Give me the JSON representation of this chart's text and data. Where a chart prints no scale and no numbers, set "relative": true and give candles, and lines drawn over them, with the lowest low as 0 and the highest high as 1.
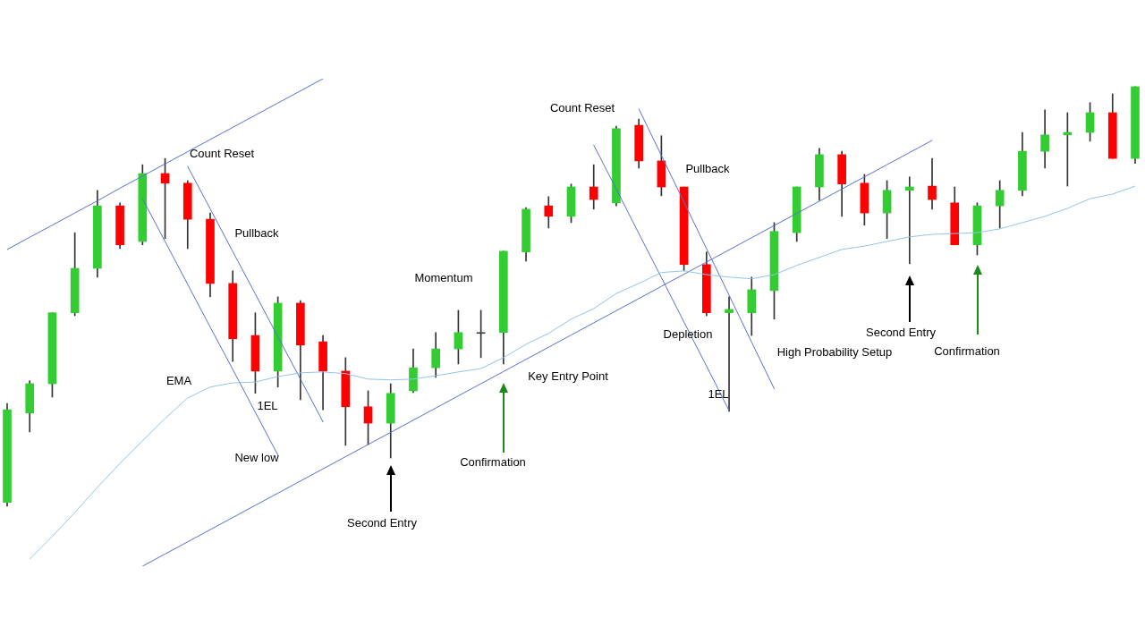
{
  "chart_data": {
    "type": "candlestick",
    "relative": true,
    "categories": [
      null,
      null,
      null,
      null,
      null,
      null,
      null,
      null,
      null,
      null,
      null,
      null,
      null,
      null,
      null,
      null,
      null,
      null,
      null,
      null,
      null,
      null,
      null,
      null,
      null,
      null,
      null,
      null,
      null,
      null,
      null,
      null,
      null,
      null,
      null,
      null,
      null,
      null,
      null,
      null,
      null,
      null,
      null,
      null,
      null,
      null,
      null,
      null,
      null,
      null,
      null
    ],
    "ohlc": [
      [
        0.009,
        0.245,
        0,
        0.23
      ],
      [
        0.222,
        0.299,
        0.177,
        0.292
      ],
      [
        0.292,
        0.461,
        0.26,
        0.461
      ],
      [
        0.461,
        0.652,
        0.454,
        0.567
      ],
      [
        0.567,
        0.753,
        0.546,
        0.716
      ],
      [
        0.716,
        0.723,
        0.614,
        0.623
      ],
      [
        0.631,
        0.814,
        0.623,
        0.793
      ],
      [
        0.793,
        0.829,
        0.638,
        0.77
      ],
      [
        0.77,
        0.776,
        0.614,
        0.684
      ],
      [
        0.684,
        0.699,
        0.499,
        0.531
      ],
      [
        0.531,
        0.561,
        0.345,
        0.399
      ],
      [
        0.407,
        0.461,
        0.269,
        0.322
      ],
      [
        0.322,
        0.499,
        0.284,
        0.484
      ],
      [
        0.484,
        0.49,
        0.254,
        0.384
      ],
      [
        0.392,
        0.407,
        0.23,
        0.322
      ],
      [
        0.322,
        0.354,
        0.145,
        0.237
      ],
      [
        0.237,
        0.275,
        0.147,
        0.198
      ],
      [
        0.198,
        0.292,
        0.115,
        0.269
      ],
      [
        0.275,
        0.375,
        0.271,
        0.33
      ],
      [
        0.33,
        0.414,
        0.307,
        0.375
      ],
      [
        0.375,
        0.467,
        0.339,
        0.414
      ],
      [
        0.414,
        0.467,
        0.354,
        0.414
      ],
      [
        0.414,
        0.608,
        0.339,
        0.608
      ],
      [
        0.606,
        0.712,
        0.584,
        0.708
      ],
      [
        0.716,
        0.738,
        0.663,
        0.691
      ],
      [
        0.691,
        0.768,
        0.676,
        0.761
      ],
      [
        0.761,
        0.814,
        0.708,
        0.731
      ],
      [
        0.723,
        0.906,
        0.716,
        0.9
      ],
      [
        0.908,
        0.923,
        0.806,
        0.823
      ],
      [
        0.823,
        0.883,
        0.74,
        0.761
      ],
      [
        0.761,
        0.761,
        0.561,
        0.576
      ],
      [
        0.576,
        0.606,
        0.454,
        0.461
      ],
      [
        0.461,
        0.499,
        0.226,
        0.469
      ],
      [
        0.461,
        0.546,
        0.407,
        0.516
      ],
      [
        0.514,
        0.676,
        0.446,
        0.655
      ],
      [
        0.652,
        0.761,
        0.631,
        0.761
      ],
      [
        0.761,
        0.853,
        0.729,
        0.838
      ],
      [
        0.838,
        0.846,
        0.691,
        0.768
      ],
      [
        0.77,
        0.791,
        0.67,
        0.699
      ],
      [
        0.699,
        0.776,
        0.638,
        0.753
      ],
      [
        0.753,
        0.785,
        0.578,
        0.761
      ],
      [
        0.763,
        0.829,
        0.708,
        0.731
      ],
      [
        0.723,
        0.761,
        0.623,
        0.623
      ],
      [
        0.623,
        0.723,
        0.599,
        0.716
      ],
      [
        0.716,
        0.776,
        0.663,
        0.753
      ],
      [
        0.753,
        0.891,
        0.74,
        0.846
      ],
      [
        0.846,
        0.945,
        0.806,
        0.885
      ],
      [
        0.885,
        0.938,
        0.763,
        0.891
      ],
      [
        0.891,
        0.962,
        0.87,
        0.938
      ],
      [
        0.938,
        0.983,
        0.829,
        0.829
      ],
      [
        0.829,
        1.0,
        0.817,
        1.0
      ]
    ],
    "colors": [
      "#33cc33",
      "#33cc33",
      "#33cc33",
      "#33cc33",
      "#33cc33",
      "#ff0000",
      "#33cc33",
      "#ff0000",
      "#ff0000",
      "#ff0000",
      "#ff0000",
      "#ff0000",
      "#33cc33",
      "#ff0000",
      "#ff0000",
      "#ff0000",
      "#ff0000",
      "#33cc33",
      "#33cc33",
      "#33cc33",
      "#33cc33",
      "#404040",
      "#33cc33",
      "#33cc33",
      "#ff0000",
      "#33cc33",
      "#ff0000",
      "#33cc33",
      "#ff0000",
      "#ff0000",
      "#ff0000",
      "#ff0000",
      "#33cc33",
      "#33cc33",
      "#33cc33",
      "#33cc33",
      "#33cc33",
      "#ff0000",
      "#ff0000",
      "#33cc33",
      "#33cc33",
      "#ff0000",
      "#ff0000",
      "#33cc33",
      "#33cc33",
      "#33cc33",
      "#33cc33",
      "#33cc33",
      "#33cc33",
      "#ff0000",
      "#33cc33"
    ],
    "series": [
      {
        "name": "EMA",
        "type": "line",
        "color": "#93c4e6",
        "values": [
          null,
          -0.126,
          -0.072,
          -0.015,
          0.045,
          0.102,
          0.156,
          0.209,
          0.258,
          0.284,
          0.294,
          0.296,
          0.309,
          0.318,
          0.32,
          0.316,
          0.303,
          0.301,
          0.303,
          0.311,
          0.32,
          0.328,
          0.354,
          0.386,
          0.412,
          0.446,
          0.471,
          0.507,
          0.531,
          0.557,
          0.561,
          0.552,
          0.546,
          0.542,
          0.552,
          0.574,
          0.593,
          0.612,
          0.62,
          0.631,
          0.642,
          0.648,
          0.65,
          0.652,
          0.661,
          0.676,
          0.691,
          0.71,
          0.733,
          0.744,
          0.763
        ]
      },
      {
        "type": "line",
        "color": "#5a6fd0",
        "values": [
          0.612,
          0.641,
          0.67,
          0.699,
          0.728,
          0.758,
          0.787,
          0.816,
          0.845,
          0.874,
          0.903,
          0.932,
          0.961,
          0.99,
          1.019,
          null,
          null,
          null,
          null,
          null,
          null,
          null,
          null,
          null,
          null,
          null,
          null,
          null,
          null,
          null,
          null,
          null,
          null,
          null,
          null,
          null,
          null,
          null,
          null,
          null,
          null,
          null,
          null,
          null,
          null,
          null,
          null,
          null,
          null,
          null,
          null
        ]
      },
      {
        "type": "line",
        "color": "#5a6fd0",
        "values": [
          null,
          null,
          null,
          null,
          null,
          null,
          0.733,
          0.631,
          0.529,
          0.427,
          0.326,
          0.224,
          0.122,
          null,
          null,
          null,
          null,
          null,
          null,
          null,
          null,
          null,
          null,
          null,
          null,
          null,
          null,
          null,
          null,
          null,
          null,
          null,
          null,
          null,
          null,
          null,
          null,
          null,
          null,
          null,
          null,
          null,
          null,
          null,
          null,
          null,
          null,
          null,
          null,
          null,
          null
        ]
      },
      {
        "type": "line",
        "color": "#5a6fd0",
        "values": [
          null,
          null,
          null,
          null,
          null,
          null,
          null,
          null,
          0.81,
          0.709,
          0.607,
          0.506,
          0.404,
          0.303,
          0.201,
          null,
          null,
          null,
          null,
          null,
          null,
          null,
          null,
          null,
          null,
          null,
          null,
          null,
          null,
          null,
          null,
          null,
          null,
          null,
          null,
          null,
          null,
          null,
          null,
          null,
          null,
          null,
          null,
          null,
          null,
          null,
          null,
          null,
          null,
          null,
          null
        ]
      },
      {
        "type": "line",
        "color": "#5a6fd0",
        "values": [
          null,
          null,
          null,
          null,
          null,
          null,
          -0.143,
          -0.114,
          -0.085,
          -0.056,
          -0.027,
          0.002,
          0.031,
          0.06,
          0.089,
          0.118,
          0.147,
          0.176,
          0.205,
          0.234,
          0.263,
          0.292,
          0.321,
          0.35,
          0.379,
          0.408,
          0.437,
          0.466,
          0.495,
          0.524,
          0.553,
          0.582,
          0.611,
          0.64,
          0.669,
          0.698,
          0.727,
          0.756,
          0.785,
          0.814,
          0.843,
          0.872,
          null,
          null,
          null,
          null,
          null,
          null,
          null,
          null,
          null
        ]
      },
      {
        "type": "line",
        "color": "#5a6fd0",
        "values": [
          null,
          null,
          null,
          null,
          null,
          null,
          null,
          null,
          null,
          null,
          null,
          null,
          null,
          null,
          null,
          null,
          null,
          null,
          null,
          null,
          null,
          null,
          null,
          null,
          null,
          null,
          0.861,
          0.756,
          0.65,
          0.545,
          0.439,
          0.334,
          0.228,
          null,
          null,
          null,
          null,
          null,
          null,
          null,
          null,
          null,
          null,
          null,
          null,
          null,
          null,
          null,
          null,
          null,
          null
        ]
      },
      {
        "type": "line",
        "color": "#5a6fd0",
        "values": [
          null,
          null,
          null,
          null,
          null,
          null,
          null,
          null,
          null,
          null,
          null,
          null,
          null,
          null,
          null,
          null,
          null,
          null,
          null,
          null,
          null,
          null,
          null,
          null,
          null,
          null,
          null,
          null,
          0.947,
          0.836,
          0.725,
          0.614,
          0.503,
          0.391,
          0.28,
          null,
          null,
          null,
          null,
          null,
          null,
          null,
          null,
          null,
          null,
          null,
          null,
          null,
          null,
          null,
          null
        ]
      }
    ],
    "annotations": [
      "Count Reset",
      "Pullback",
      "1EL",
      "New low",
      "Second Entry",
      "Momentum",
      "Confirmation",
      "Key Entry Point",
      "Count Reset",
      "Pullback",
      "Depletion",
      "1EL",
      "High Probability Setup",
      "Second Entry",
      "Confirmation"
    ]
  }
}
